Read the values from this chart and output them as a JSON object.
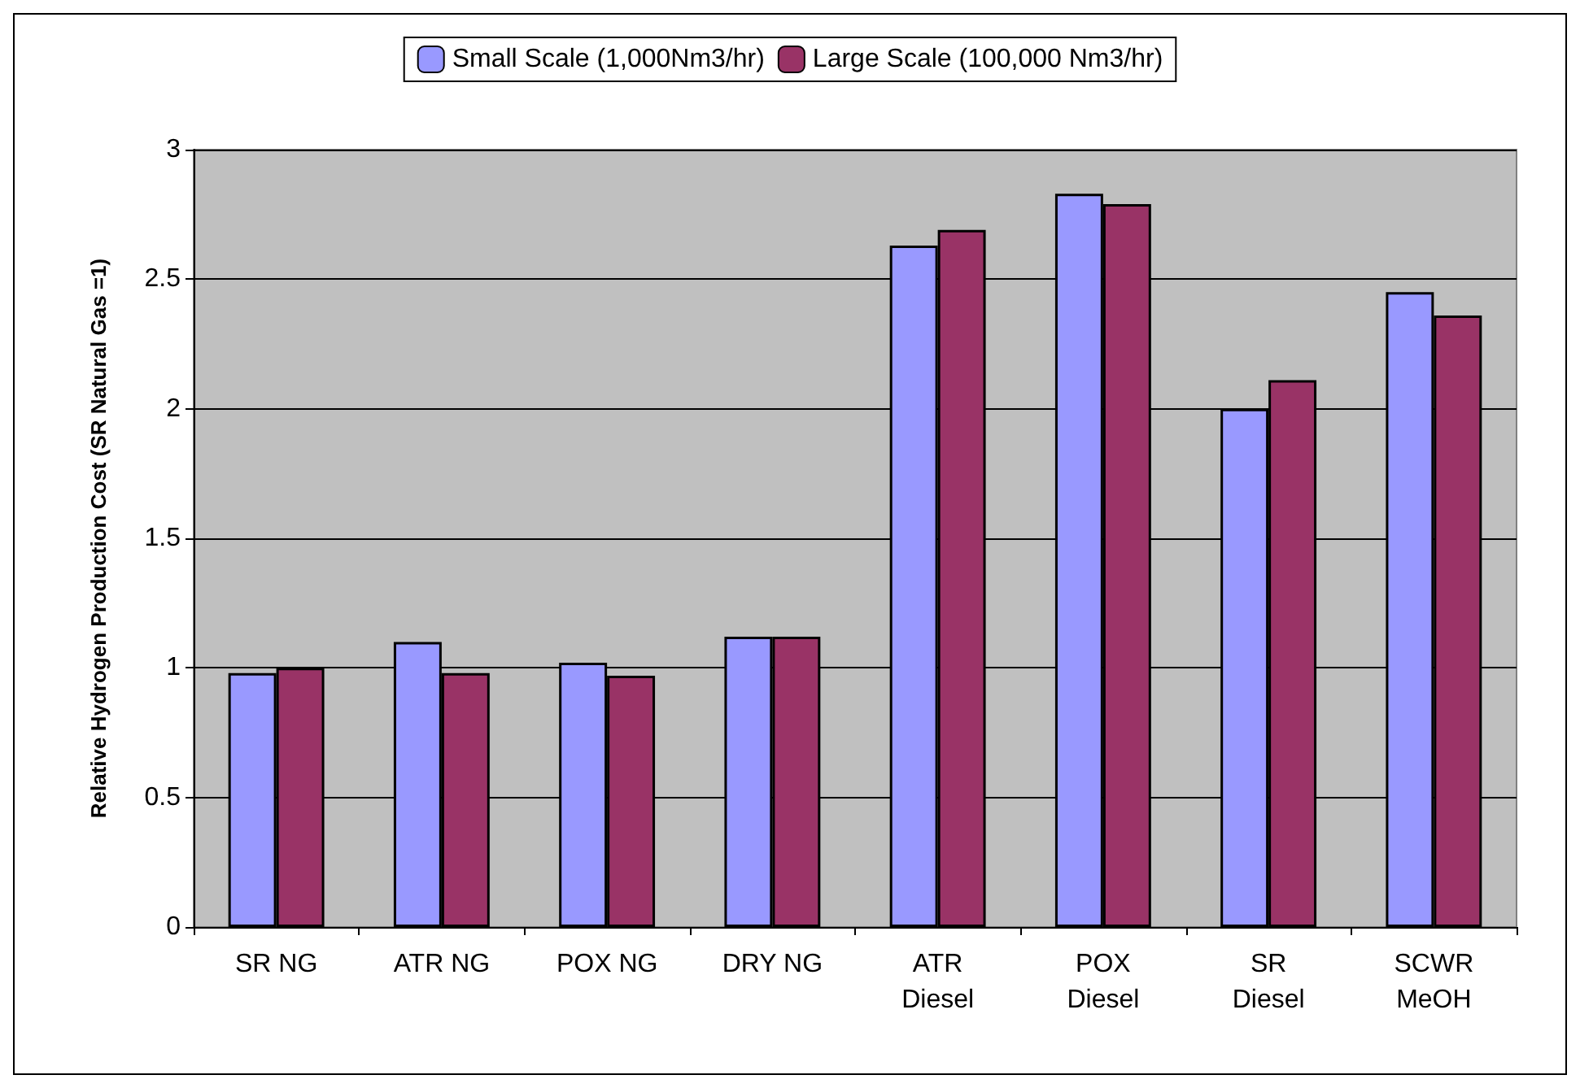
{
  "chart_data": {
    "type": "bar",
    "ylabel": "Relative Hydrogen Production Cost (SR Natural Gas =1)",
    "categories": [
      "SR NG",
      "ATR NG",
      "POX NG",
      "DRY NG",
      "ATR\nDiesel",
      "POX\nDiesel",
      "SR\nDiesel",
      "SCWR\nMeOH"
    ],
    "series": [
      {
        "name": "Small Scale (1,000Nm3/hr)",
        "color": "#9999ff",
        "values": [
          0.98,
          1.1,
          1.02,
          1.12,
          2.63,
          2.83,
          2.0,
          2.45
        ]
      },
      {
        "name": "Large Scale (100,000 Nm3/hr)",
        "color": "#993366",
        "values": [
          1.0,
          0.98,
          0.97,
          1.12,
          2.69,
          2.79,
          2.11,
          2.36
        ]
      }
    ],
    "ylim": [
      0,
      3
    ],
    "yticks": [
      0,
      0.5,
      1,
      1.5,
      2,
      2.5,
      3
    ],
    "grid": "y",
    "legend": "top"
  }
}
